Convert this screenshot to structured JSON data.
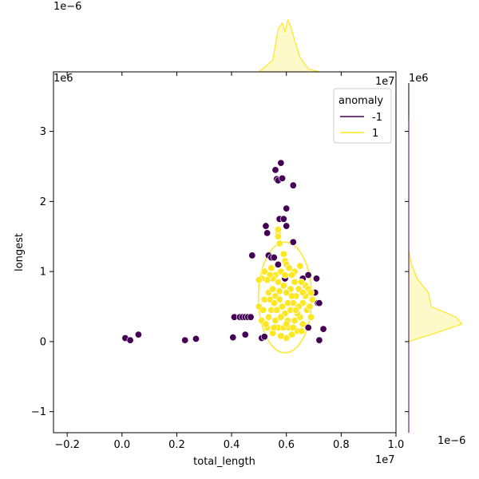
{
  "chart_data": {
    "type": "scatter",
    "kind": "jointplot",
    "xlabel": "total_length",
    "ylabel": "longest",
    "xlim": [
      -2.5,
      10.0
    ],
    "ylim": [
      -1.3,
      3.85
    ],
    "x_ticks": [
      -0.2,
      0.0,
      0.2,
      0.4,
      0.6,
      0.8,
      1.0
    ],
    "x_tick_labels": [
      "−0.2",
      "0.0",
      "0.2",
      "0.4",
      "0.6",
      "0.8",
      "1.0"
    ],
    "y_ticks": [
      -1,
      0,
      1,
      2,
      3
    ],
    "y_tick_labels": [
      "−1",
      "0",
      "1",
      "2",
      "3"
    ],
    "x_offset_label": "1e7",
    "y_offset_label": "1e6",
    "top_margin_offset_label": "1e−6",
    "right_margin_offset_label": "1e−6",
    "x_unit": "1e6",
    "y_unit": "1e6",
    "grid": false,
    "legend": {
      "title": "anomaly",
      "position": "top-right",
      "entries": [
        {
          "label": "-1",
          "color": "#440154"
        },
        {
          "label": "1",
          "color": "#fde725"
        }
      ]
    },
    "series": [
      {
        "name": "-1",
        "color": "#440154",
        "points": [
          [
            0.12,
            0.05
          ],
          [
            0.3,
            0.02
          ],
          [
            0.6,
            0.1
          ],
          [
            2.3,
            0.02
          ],
          [
            2.7,
            0.04
          ],
          [
            4.05,
            0.06
          ],
          [
            4.1,
            0.35
          ],
          [
            4.3,
            0.35
          ],
          [
            4.4,
            0.35
          ],
          [
            4.5,
            0.35
          ],
          [
            4.6,
            0.35
          ],
          [
            4.7,
            0.35
          ],
          [
            4.5,
            0.1
          ],
          [
            4.75,
            1.23
          ],
          [
            5.1,
            0.05
          ],
          [
            5.2,
            0.07
          ],
          [
            5.25,
            1.65
          ],
          [
            5.3,
            1.55
          ],
          [
            5.35,
            1.23
          ],
          [
            5.45,
            1.2
          ],
          [
            5.55,
            1.2
          ],
          [
            5.6,
            2.45
          ],
          [
            5.65,
            2.32
          ],
          [
            5.7,
            2.3
          ],
          [
            5.75,
            1.75
          ],
          [
            5.8,
            2.55
          ],
          [
            5.85,
            2.33
          ],
          [
            5.9,
            1.75
          ],
          [
            6.0,
            1.9
          ],
          [
            6.0,
            1.65
          ],
          [
            6.25,
            2.23
          ],
          [
            6.25,
            1.42
          ],
          [
            5.7,
            1.1
          ],
          [
            6.6,
            0.9
          ],
          [
            6.8,
            0.95
          ],
          [
            7.1,
            0.9
          ],
          [
            7.05,
            0.7
          ],
          [
            7.15,
            0.55
          ],
          [
            7.2,
            0.55
          ],
          [
            7.2,
            0.02
          ],
          [
            7.35,
            0.18
          ],
          [
            6.8,
            0.2
          ],
          [
            5.95,
            0.9
          ]
        ]
      },
      {
        "name": "1",
        "color": "#fde725",
        "points": [
          [
            5.7,
            1.55
          ],
          [
            5.7,
            1.6
          ],
          [
            5.7,
            1.5
          ],
          [
            5.75,
            1.4
          ],
          [
            5.9,
            1.25
          ],
          [
            5.95,
            1.15
          ],
          [
            6.0,
            1.1
          ],
          [
            6.1,
            1.05
          ],
          [
            6.3,
            1.0
          ],
          [
            6.5,
            1.08
          ],
          [
            5.8,
            1.0
          ],
          [
            5.6,
            0.95
          ],
          [
            5.5,
            0.9
          ],
          [
            5.4,
            0.95
          ],
          [
            5.3,
            0.88
          ],
          [
            5.1,
            0.9
          ],
          [
            5.0,
            0.88
          ],
          [
            5.2,
            1.0
          ],
          [
            5.45,
            1.05
          ],
          [
            6.7,
            0.8
          ],
          [
            6.8,
            0.75
          ],
          [
            6.9,
            0.7
          ],
          [
            6.95,
            0.6
          ],
          [
            6.6,
            0.55
          ],
          [
            6.75,
            0.45
          ],
          [
            6.9,
            0.35
          ],
          [
            6.6,
            0.25
          ],
          [
            6.4,
            0.15
          ],
          [
            6.2,
            0.1
          ],
          [
            6.0,
            0.05
          ],
          [
            5.8,
            0.08
          ],
          [
            5.5,
            0.12
          ],
          [
            5.3,
            0.2
          ],
          [
            5.1,
            0.3
          ],
          [
            5.0,
            0.5
          ],
          [
            5.2,
            0.6
          ],
          [
            5.35,
            0.7
          ],
          [
            5.5,
            0.75
          ],
          [
            5.6,
            0.65
          ],
          [
            5.75,
            0.6
          ],
          [
            5.85,
            0.5
          ],
          [
            5.95,
            0.4
          ],
          [
            6.05,
            0.3
          ],
          [
            6.15,
            0.45
          ],
          [
            6.25,
            0.55
          ],
          [
            6.35,
            0.65
          ],
          [
            6.45,
            0.75
          ],
          [
            6.55,
            0.85
          ],
          [
            6.3,
            0.85
          ],
          [
            6.15,
            0.75
          ],
          [
            6.0,
            0.7
          ],
          [
            5.9,
            0.8
          ],
          [
            5.7,
            0.85
          ],
          [
            5.55,
            0.55
          ],
          [
            5.45,
            0.45
          ],
          [
            5.35,
            0.35
          ],
          [
            5.25,
            0.25
          ],
          [
            5.6,
            0.3
          ],
          [
            5.7,
            0.2
          ],
          [
            5.9,
            0.2
          ],
          [
            6.1,
            0.2
          ],
          [
            6.3,
            0.3
          ],
          [
            6.5,
            0.35
          ],
          [
            6.7,
            0.65
          ],
          [
            6.45,
            0.5
          ],
          [
            6.2,
            0.65
          ],
          [
            6.05,
            0.55
          ],
          [
            5.8,
            0.35
          ],
          [
            5.65,
            0.45
          ],
          [
            6.4,
            0.4
          ],
          [
            6.6,
            0.7
          ],
          [
            5.95,
            0.95
          ],
          [
            6.2,
            0.95
          ],
          [
            5.4,
            0.6
          ],
          [
            5.15,
            0.45
          ],
          [
            6.85,
            0.5
          ],
          [
            6.0,
            0.25
          ],
          [
            6.25,
            0.2
          ],
          [
            5.55,
            0.2
          ],
          [
            6.55,
            0.15
          ],
          [
            5.75,
            0.72
          ],
          [
            6.35,
            0.45
          ]
        ]
      }
    ],
    "marginal_x_kde": {
      "name": "1",
      "x": [
        5.0,
        5.5,
        5.7,
        5.85,
        5.95,
        6.05,
        6.15,
        6.3,
        6.5,
        6.8,
        7.2
      ],
      "density": [
        0.0,
        0.2,
        0.75,
        0.85,
        0.7,
        0.9,
        0.8,
        0.55,
        0.25,
        0.05,
        0.0
      ]
    },
    "marginal_y_kde": {
      "name": "1",
      "y": [
        0.0,
        0.1,
        0.25,
        0.35,
        0.5,
        0.7,
        0.9,
        1.1,
        1.3
      ],
      "density": [
        0.0,
        0.4,
        0.95,
        0.85,
        0.4,
        0.35,
        0.15,
        0.05,
        0.0
      ]
    }
  }
}
